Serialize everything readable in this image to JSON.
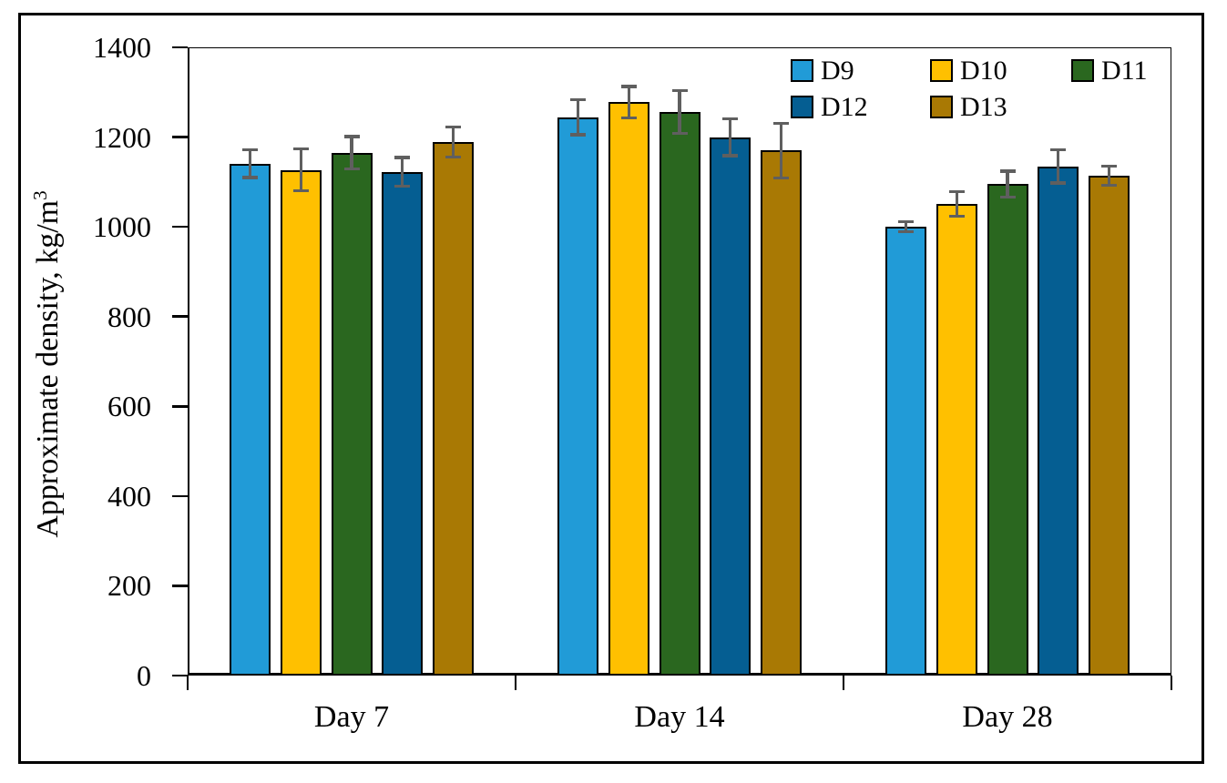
{
  "chart_data": {
    "type": "bar",
    "title": "",
    "ylabel": "Approximate density, kg/m",
    "ylabel_superscript": "3",
    "xlabel": "",
    "categories": [
      "Day 7",
      "Day 14",
      "Day 28"
    ],
    "series": [
      {
        "name": "D9",
        "color": "#219BD7",
        "values": [
          1141,
          1244,
          1000
        ],
        "errors": [
          31,
          39,
          11
        ]
      },
      {
        "name": "D10",
        "color": "#FFC000",
        "values": [
          1127,
          1278,
          1051
        ],
        "errors": [
          47,
          35,
          27
        ]
      },
      {
        "name": "D11",
        "color": "#2A671F",
        "values": [
          1165,
          1256,
          1095
        ],
        "errors": [
          36,
          48,
          29
        ]
      },
      {
        "name": "D12",
        "color": "#055E92",
        "values": [
          1123,
          1200,
          1135
        ],
        "errors": [
          32,
          41,
          37
        ]
      },
      {
        "name": "D13",
        "color": "#A97904",
        "values": [
          1189,
          1170,
          1114
        ],
        "errors": [
          33,
          61,
          21
        ]
      }
    ],
    "y_axis": {
      "min": 0,
      "max": 1400,
      "step": 200,
      "ticks": [
        0,
        200,
        400,
        600,
        800,
        1000,
        1200,
        1400
      ]
    },
    "error_bar_color": "#5F5F5F",
    "legend_position": "top-right",
    "grid": false
  }
}
